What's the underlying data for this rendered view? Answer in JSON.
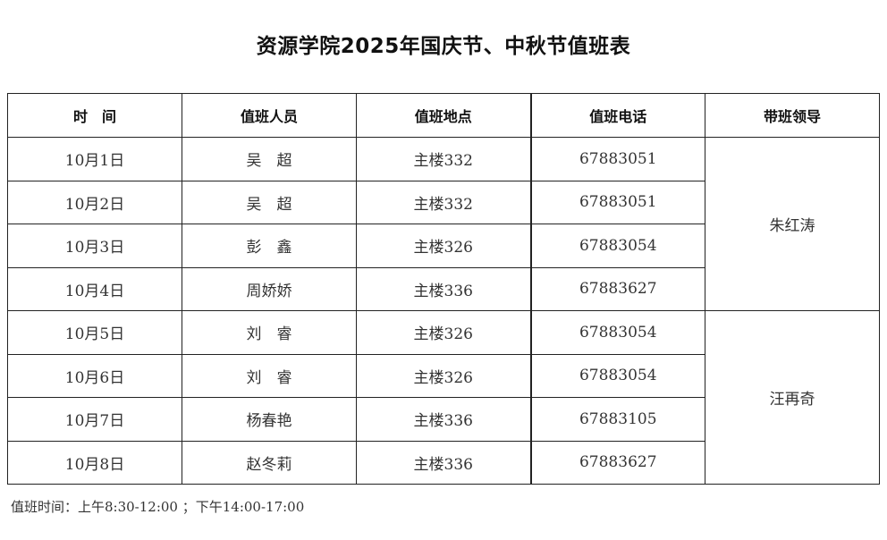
{
  "title": "资源学院2025年国庆节、中秋节值班表",
  "headers": [
    "时　间",
    "值班人员",
    "值班地点",
    "值班电话",
    "带班领导"
  ],
  "rows": [
    {
      "date": "10月1日",
      "person": "吴　超",
      "place": "主楼332",
      "phone": "67883051"
    },
    {
      "date": "10月2日",
      "person": "吴　超",
      "place": "主楼332",
      "phone": "67883051"
    },
    {
      "date": "10月3日",
      "person": "彭　鑫",
      "place": "主楼326",
      "phone": "67883054"
    },
    {
      "date": "10月4日",
      "person": "周娇娇",
      "place": "主楼336",
      "phone": "67883627"
    },
    {
      "date": "10月5日",
      "person": "刘　睿",
      "place": "主楼326",
      "phone": "67883054"
    },
    {
      "date": "10月6日",
      "person": "刘　睿",
      "place": "主楼326",
      "phone": "67883054"
    },
    {
      "date": "10月7日",
      "person": "杨春艳",
      "place": "主楼336",
      "phone": "67883105"
    },
    {
      "date": "10月8日",
      "person": "赵冬莉",
      "place": "主楼336",
      "phone": "67883627"
    }
  ],
  "leaders": [
    "朱红涛",
    "汪再奇"
  ],
  "note": "值班时间：上午8:30-12:00 ；下午14:00-17:00"
}
